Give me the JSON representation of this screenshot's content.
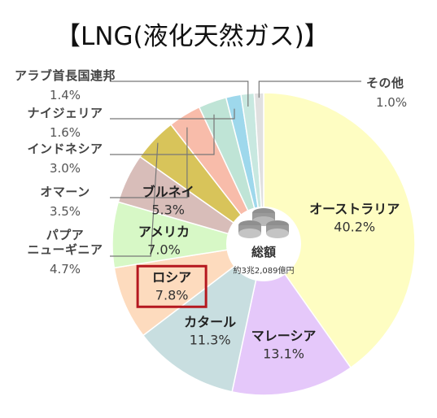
{
  "chart_data": {
    "type": "pie",
    "title": "【LNG(液化天然ガス)】",
    "center_label": "総額",
    "center_sublabel": "約3兆2,089億円",
    "slices": [
      {
        "name": "オーストラリア",
        "value": 40.2,
        "label": "40.2%",
        "color": "#FEFDC2"
      },
      {
        "name": "マレーシア",
        "value": 13.1,
        "label": "13.1%",
        "color": "#E5C8FA"
      },
      {
        "name": "カタール",
        "value": 11.3,
        "label": "11.3%",
        "color": "#C8DEE0"
      },
      {
        "name": "ロシア",
        "value": 7.8,
        "label": "7.8%",
        "color": "#FDDBBE"
      },
      {
        "name": "アメリカ",
        "value": 7.0,
        "label": "7.0%",
        "color": "#D7F8C6"
      },
      {
        "name": "ブルネイ",
        "value": 5.3,
        "label": "5.3%",
        "color": "#D8BDB9"
      },
      {
        "name": "パプアニューギニア",
        "value": 4.7,
        "label": "4.7%",
        "color": "#D8C45A"
      },
      {
        "name": "オマーン",
        "value": 3.5,
        "label": "3.5%",
        "color": "#F8BCAA"
      },
      {
        "name": "インドネシア",
        "value": 3.0,
        "label": "3.0%",
        "color": "#BFE4D6"
      },
      {
        "name": "ナイジェリア",
        "value": 1.6,
        "label": "1.6%",
        "color": "#9ED8EC"
      },
      {
        "name": "アラブ首長国連邦",
        "value": 1.4,
        "label": "1.4%",
        "color": "#C8E8E0"
      },
      {
        "name": "その他",
        "value": 1.0,
        "label": "1.0%",
        "color": "#E0E0E0"
      }
    ],
    "highlight": "ロシア",
    "colors": {
      "highlight_border": "#B5181F",
      "leader": "#777777",
      "separator": "#FFFFFF"
    }
  }
}
